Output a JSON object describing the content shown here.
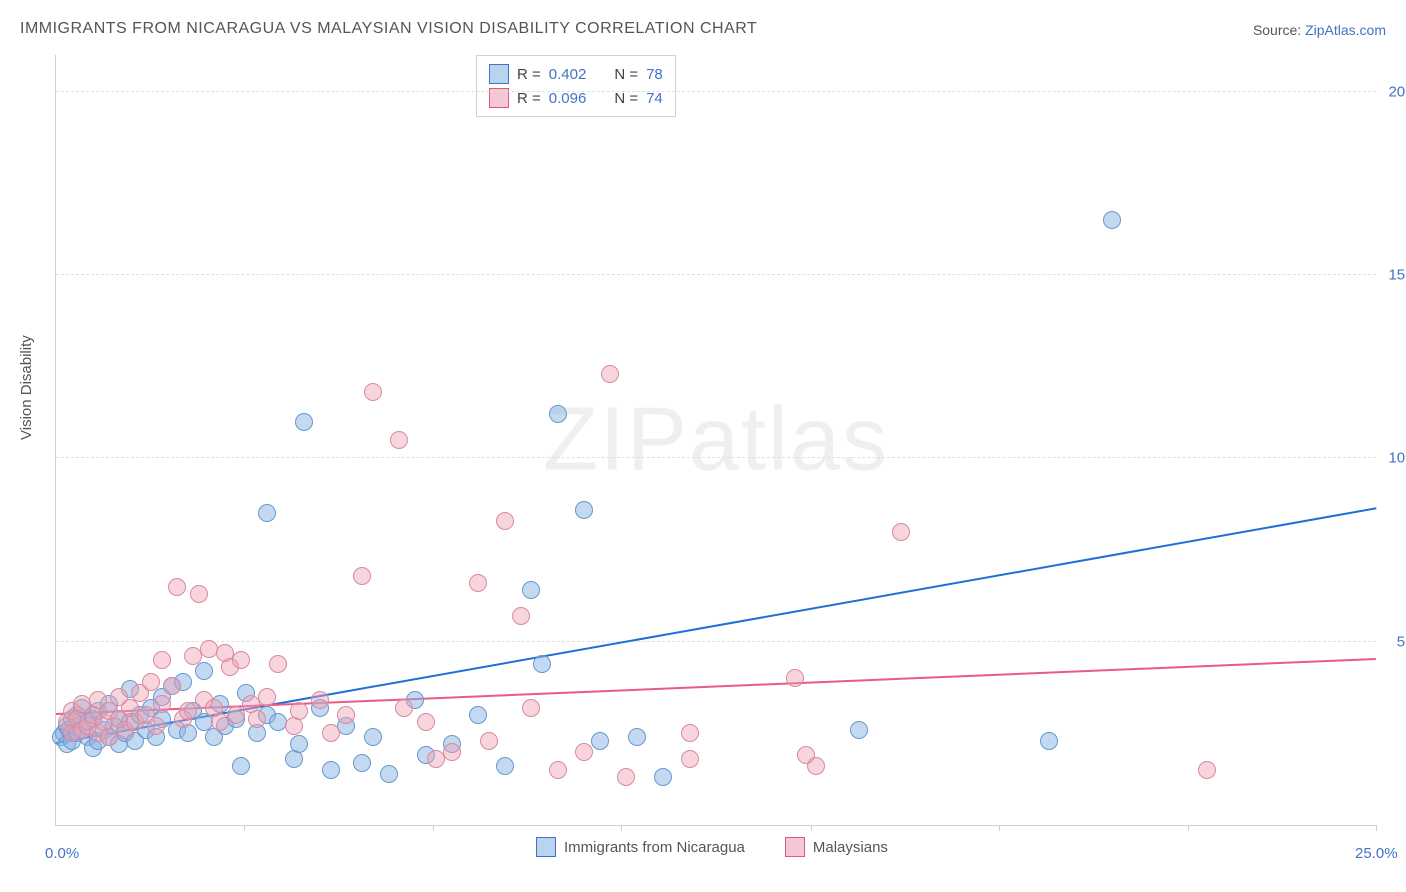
{
  "title": "IMMIGRANTS FROM NICARAGUA VS MALAYSIAN VISION DISABILITY CORRELATION CHART",
  "source_label": "Source: ",
  "source_link": "ZipAtlas.com",
  "ylabel": "Vision Disability",
  "watermark_a": "ZIP",
  "watermark_b": "atlas",
  "chart": {
    "type": "scatter",
    "xlim": [
      0,
      25
    ],
    "ylim": [
      0,
      21
    ],
    "xtick_labels": {
      "min": "0.0%",
      "max": "25.0%"
    },
    "ytick_labels": [
      "5.0%",
      "10.0%",
      "15.0%",
      "20.0%"
    ],
    "ytick_values": [
      5,
      10,
      15,
      20
    ],
    "xtick_positions": [
      3.57,
      7.14,
      10.71,
      14.29,
      17.86,
      21.43,
      25.0
    ],
    "grid_color": "#e0e0e0",
    "axis_color": "#d0d0d0",
    "tick_label_color": "#4472c4",
    "background_color": "#ffffff",
    "point_radius": 8,
    "series": [
      {
        "name": "Immigrants from Nicaragua",
        "fill": "rgba(135,180,230,0.5)",
        "stroke": "#6699cc",
        "swatch_fill": "#b8d4ee",
        "swatch_stroke": "#4472c4",
        "trend_color": "#1f6fd4",
        "trend": {
          "x0": 0,
          "y0": 2.2,
          "x1": 25,
          "y1": 8.6
        },
        "R": "0.402",
        "N": "78",
        "points": [
          [
            0.1,
            2.4
          ],
          [
            0.15,
            2.5
          ],
          [
            0.2,
            2.7
          ],
          [
            0.2,
            2.2
          ],
          [
            0.25,
            2.6
          ],
          [
            0.3,
            2.9
          ],
          [
            0.3,
            2.3
          ],
          [
            0.4,
            2.5
          ],
          [
            0.4,
            3.0
          ],
          [
            0.5,
            2.6
          ],
          [
            0.5,
            3.2
          ],
          [
            0.6,
            2.4
          ],
          [
            0.6,
            2.8
          ],
          [
            0.7,
            2.1
          ],
          [
            0.7,
            2.9
          ],
          [
            0.8,
            2.3
          ],
          [
            0.8,
            3.1
          ],
          [
            0.9,
            2.6
          ],
          [
            1.0,
            2.4
          ],
          [
            1.0,
            3.3
          ],
          [
            1.1,
            2.7
          ],
          [
            1.2,
            2.9
          ],
          [
            1.2,
            2.2
          ],
          [
            1.3,
            2.5
          ],
          [
            1.4,
            3.7
          ],
          [
            1.4,
            2.8
          ],
          [
            1.5,
            2.3
          ],
          [
            1.6,
            3.0
          ],
          [
            1.7,
            2.6
          ],
          [
            1.8,
            3.2
          ],
          [
            1.9,
            2.4
          ],
          [
            2.0,
            2.9
          ],
          [
            2.0,
            3.5
          ],
          [
            2.2,
            3.8
          ],
          [
            2.3,
            2.6
          ],
          [
            2.4,
            3.9
          ],
          [
            2.5,
            2.5
          ],
          [
            2.6,
            3.1
          ],
          [
            2.8,
            2.8
          ],
          [
            2.8,
            4.2
          ],
          [
            3.0,
            2.4
          ],
          [
            3.1,
            3.3
          ],
          [
            3.2,
            2.7
          ],
          [
            3.4,
            2.9
          ],
          [
            3.5,
            1.6
          ],
          [
            3.6,
            3.6
          ],
          [
            3.8,
            2.5
          ],
          [
            4.0,
            3.0
          ],
          [
            4.0,
            8.5
          ],
          [
            4.2,
            2.8
          ],
          [
            4.5,
            1.8
          ],
          [
            4.6,
            2.2
          ],
          [
            4.7,
            11.0
          ],
          [
            5.0,
            3.2
          ],
          [
            5.2,
            1.5
          ],
          [
            5.5,
            2.7
          ],
          [
            5.8,
            1.7
          ],
          [
            6.0,
            2.4
          ],
          [
            6.3,
            1.4
          ],
          [
            6.8,
            3.4
          ],
          [
            7.0,
            1.9
          ],
          [
            7.5,
            2.2
          ],
          [
            8.0,
            3.0
          ],
          [
            8.5,
            1.6
          ],
          [
            9.0,
            6.4
          ],
          [
            9.2,
            4.4
          ],
          [
            9.5,
            11.2
          ],
          [
            10.0,
            8.6
          ],
          [
            10.3,
            2.3
          ],
          [
            11.0,
            2.4
          ],
          [
            11.5,
            1.3
          ],
          [
            15.2,
            2.6
          ],
          [
            18.8,
            2.3
          ],
          [
            20.0,
            16.5
          ]
        ]
      },
      {
        "name": "Malaysians",
        "fill": "rgba(240,160,180,0.45)",
        "stroke": "#d88aa0",
        "swatch_fill": "#f5c6d3",
        "swatch_stroke": "#d85a7f",
        "trend_color": "#e75a8a",
        "trend": {
          "x0": 0,
          "y0": 3.0,
          "x1": 25,
          "y1": 4.5
        },
        "R": "0.096",
        "N": "74",
        "points": [
          [
            0.2,
            2.8
          ],
          [
            0.3,
            2.5
          ],
          [
            0.3,
            3.1
          ],
          [
            0.4,
            2.9
          ],
          [
            0.5,
            2.6
          ],
          [
            0.5,
            3.3
          ],
          [
            0.6,
            2.7
          ],
          [
            0.7,
            3.0
          ],
          [
            0.8,
            2.5
          ],
          [
            0.8,
            3.4
          ],
          [
            0.9,
            2.8
          ],
          [
            1.0,
            3.1
          ],
          [
            1.0,
            2.4
          ],
          [
            1.2,
            3.5
          ],
          [
            1.2,
            2.9
          ],
          [
            1.3,
            2.6
          ],
          [
            1.4,
            3.2
          ],
          [
            1.5,
            2.8
          ],
          [
            1.6,
            3.6
          ],
          [
            1.7,
            3.0
          ],
          [
            1.8,
            3.9
          ],
          [
            1.9,
            2.7
          ],
          [
            2.0,
            3.3
          ],
          [
            2.0,
            4.5
          ],
          [
            2.2,
            3.8
          ],
          [
            2.3,
            6.5
          ],
          [
            2.4,
            2.9
          ],
          [
            2.5,
            3.1
          ],
          [
            2.6,
            4.6
          ],
          [
            2.7,
            6.3
          ],
          [
            2.8,
            3.4
          ],
          [
            2.9,
            4.8
          ],
          [
            3.0,
            3.2
          ],
          [
            3.1,
            2.8
          ],
          [
            3.2,
            4.7
          ],
          [
            3.3,
            4.3
          ],
          [
            3.4,
            3.0
          ],
          [
            3.5,
            4.5
          ],
          [
            3.7,
            3.3
          ],
          [
            3.8,
            2.9
          ],
          [
            4.0,
            3.5
          ],
          [
            4.2,
            4.4
          ],
          [
            4.5,
            2.7
          ],
          [
            4.6,
            3.1
          ],
          [
            5.0,
            3.4
          ],
          [
            5.2,
            2.5
          ],
          [
            5.5,
            3.0
          ],
          [
            5.8,
            6.8
          ],
          [
            6.0,
            11.8
          ],
          [
            6.5,
            10.5
          ],
          [
            6.6,
            3.2
          ],
          [
            7.0,
            2.8
          ],
          [
            7.2,
            1.8
          ],
          [
            7.5,
            2.0
          ],
          [
            8.0,
            6.6
          ],
          [
            8.2,
            2.3
          ],
          [
            8.5,
            8.3
          ],
          [
            8.8,
            5.7
          ],
          [
            9.0,
            3.2
          ],
          [
            9.5,
            1.5
          ],
          [
            10.0,
            2.0
          ],
          [
            10.5,
            12.3
          ],
          [
            10.8,
            1.3
          ],
          [
            12.0,
            1.8
          ],
          [
            12.0,
            2.5
          ],
          [
            14.0,
            4.0
          ],
          [
            14.2,
            1.9
          ],
          [
            14.4,
            1.6
          ],
          [
            16.0,
            8.0
          ],
          [
            21.8,
            1.5
          ]
        ]
      }
    ]
  },
  "legend_top": {
    "R_label": "R =",
    "N_label": "N ="
  },
  "legend_bottom": {
    "series1": "Immigrants from Nicaragua",
    "series2": "Malaysians"
  }
}
